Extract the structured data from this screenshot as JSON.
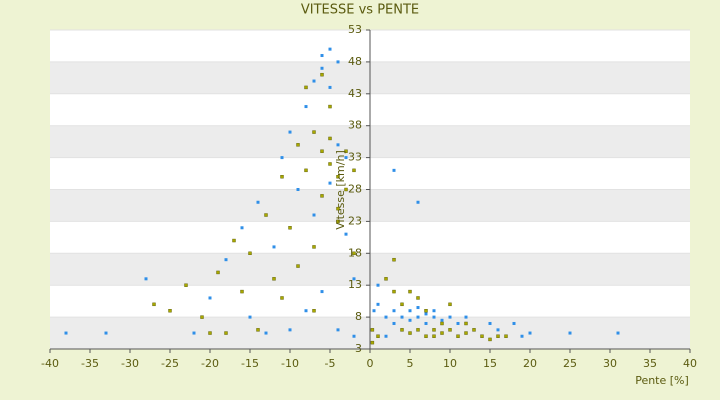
{
  "chart_data": {
    "type": "scatter",
    "title": "VITESSE vs PENTE",
    "x_label": "Pente [%]",
    "y_label": "Vitesse [km/h]",
    "xlim": [
      -40,
      40
    ],
    "xticks": [
      -40,
      -35,
      -30,
      -25,
      -20,
      -15,
      -10,
      -5,
      0,
      5,
      10,
      15,
      20,
      25,
      30,
      35,
      40
    ],
    "ylim": [
      3,
      53
    ],
    "yticks": [
      3,
      8,
      13,
      18,
      23,
      28,
      33,
      38,
      43,
      48,
      53
    ],
    "grid": "bands",
    "series": [
      {
        "color": "#2f8fe8",
        "x": [
          -38,
          -33,
          -28,
          -22,
          -20,
          -18,
          -16,
          -15,
          -14,
          -12,
          -11,
          -10,
          -9,
          -8,
          -7,
          -7,
          -6,
          -6,
          -5,
          -5,
          -4,
          -4,
          -5,
          -3,
          -3,
          -2,
          -6,
          -8,
          -10,
          -13,
          -4,
          -2,
          0.5,
          1,
          2,
          3,
          3,
          4,
          4,
          5,
          5,
          6,
          6,
          7,
          7,
          8,
          8,
          9,
          10,
          11,
          12,
          13,
          15,
          16,
          18,
          20,
          25,
          31,
          3,
          6,
          1,
          2,
          4,
          19
        ],
        "values": [
          5.5,
          5.5,
          14,
          5.5,
          11,
          17,
          22,
          8,
          26,
          19,
          33,
          37,
          28,
          41,
          24,
          45,
          47,
          49,
          50,
          44,
          35,
          48,
          29,
          33,
          21,
          14,
          12,
          9,
          6,
          5.5,
          6,
          5,
          9,
          10,
          8,
          7,
          9,
          8,
          10,
          7.5,
          9,
          8,
          9.5,
          7,
          8.5,
          8,
          9,
          7.5,
          8,
          7,
          8,
          6,
          7,
          6,
          7,
          5.5,
          5.5,
          5.5,
          31,
          26,
          13,
          5,
          6,
          5
        ]
      },
      {
        "color": "#a8a800",
        "x": [
          -27,
          -25,
          -23,
          -21,
          -19,
          -17,
          -16,
          -15,
          -14,
          -13,
          -12,
          -11,
          -10,
          -9,
          -9,
          -8,
          -7,
          -7,
          -6,
          -6,
          -5,
          -5,
          -4,
          -4,
          -3,
          -3,
          -2,
          -2,
          -8,
          -6,
          -5,
          -4,
          -11,
          -7,
          -20,
          -18,
          1,
          2,
          3,
          3,
          4,
          4,
          5,
          5,
          6,
          6,
          7,
          7,
          8,
          8,
          9,
          9,
          10,
          11,
          12,
          13,
          14,
          15,
          16,
          17,
          10,
          12,
          0.3,
          0.3
        ],
        "values": [
          10,
          9,
          13,
          8,
          15,
          20,
          12,
          18,
          6,
          24,
          14,
          30,
          22,
          35,
          16,
          31,
          37,
          19,
          34,
          27,
          36,
          32,
          30,
          25,
          34,
          28,
          31,
          18,
          44,
          46,
          41,
          23,
          11,
          9,
          5.5,
          5.5,
          5,
          14,
          17,
          12,
          6,
          10,
          5.5,
          12,
          6,
          11,
          5,
          9,
          6,
          5,
          7,
          5.5,
          6,
          5,
          5.5,
          6,
          5,
          4.5,
          5,
          5,
          10,
          7,
          4,
          6
        ]
      }
    ]
  }
}
